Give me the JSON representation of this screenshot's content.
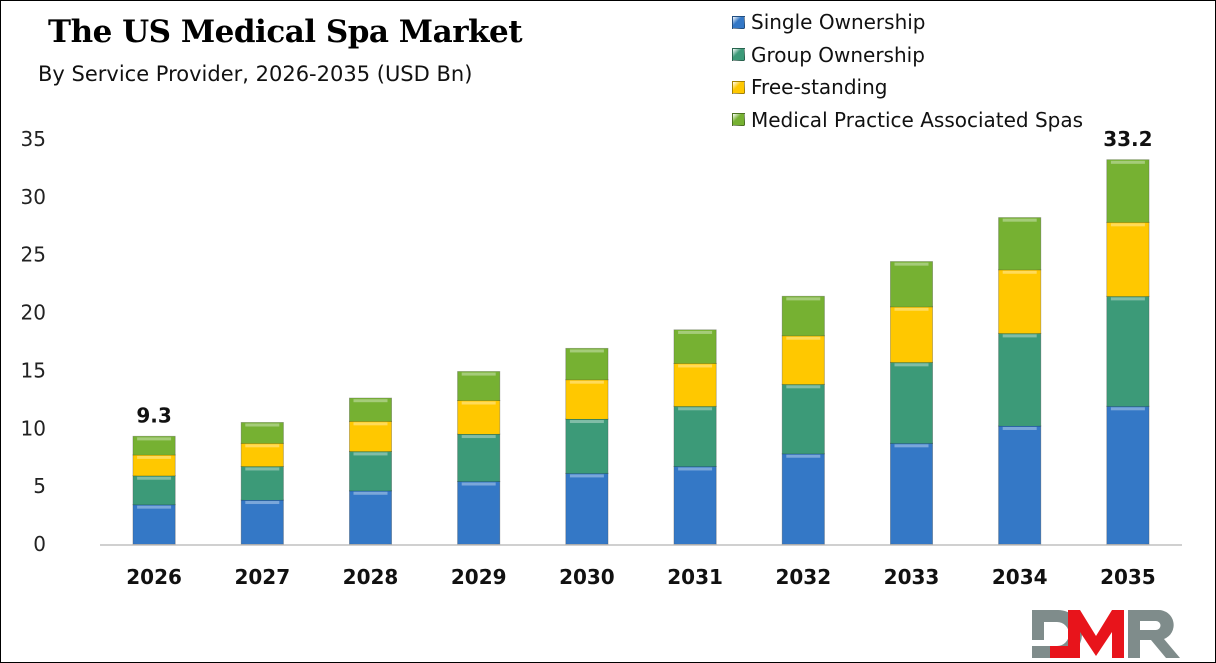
{
  "chart_data": {
    "type": "bar",
    "stacked": true,
    "title": "The US Medical Spa Market",
    "subtitle": "By Service Provider, 2026-2035 (USD Bn)",
    "xlabel": "",
    "ylabel": "",
    "ylim": [
      0,
      35
    ],
    "yticks": [
      0,
      5,
      10,
      15,
      20,
      25,
      30,
      35
    ],
    "grid": false,
    "legend_position": "top-right",
    "categories": [
      "2026",
      "2027",
      "2028",
      "2029",
      "2030",
      "2031",
      "2032",
      "2033",
      "2034",
      "2035"
    ],
    "series": [
      {
        "name": "Single Ownership",
        "color": "#3478c6",
        "values": [
          3.4,
          3.8,
          4.6,
          5.4,
          6.1,
          6.7,
          7.8,
          8.7,
          10.2,
          11.9
        ]
      },
      {
        "name": "Group Ownership",
        "color": "#3c9a78",
        "values": [
          2.5,
          2.9,
          3.4,
          4.1,
          4.7,
          5.2,
          6.0,
          7.0,
          8.0,
          9.5
        ]
      },
      {
        "name": "Free-standing",
        "color": "#ffc800",
        "values": [
          1.8,
          2.0,
          2.6,
          2.9,
          3.4,
          3.7,
          4.2,
          4.8,
          5.5,
          6.4
        ]
      },
      {
        "name": "Medical Practice Associated Spas",
        "color": "#76b132",
        "values": [
          1.6,
          1.8,
          2.0,
          2.5,
          2.7,
          2.9,
          3.4,
          3.9,
          4.5,
          5.4
        ]
      }
    ],
    "annotations": [
      {
        "category": "2026",
        "text": "9.3"
      },
      {
        "category": "2035",
        "text": "33.2"
      }
    ]
  },
  "logo": {
    "text": "DMR",
    "colors": {
      "D": "#7f8c8b",
      "M": "#e8141b",
      "R": "#7f8c8b"
    }
  }
}
